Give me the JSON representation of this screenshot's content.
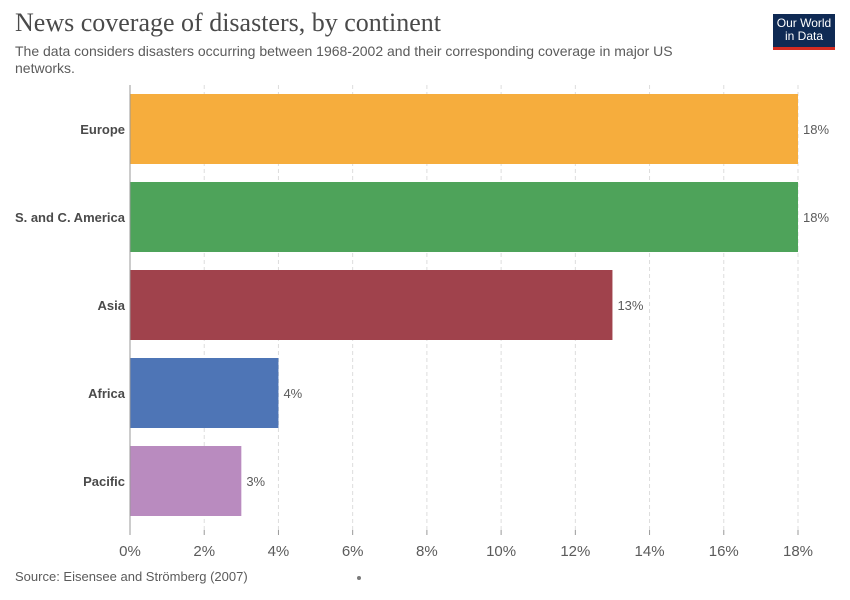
{
  "header": {
    "title": "News coverage of disasters, by continent",
    "subtitle": "The data considers disasters occurring between 1968-2002 and their corresponding coverage in major US networks."
  },
  "logo": {
    "line1": "Our World",
    "line2": "in Data",
    "bg_color": "#0f2a54",
    "accent_color": "#d42b21"
  },
  "footer": {
    "source": "Source: Eisensee and Strömberg (2007)"
  },
  "chart_data": {
    "type": "bar",
    "orientation": "horizontal",
    "title": "News coverage of disasters, by continent",
    "subtitle": "The data considers disasters occurring between 1968-2002 and their corresponding coverage in major US networks.",
    "categories": [
      "Europe",
      "S. and C. America",
      "Asia",
      "Africa",
      "Pacific"
    ],
    "values": [
      18,
      18,
      13,
      4,
      3
    ],
    "value_labels": [
      "18%",
      "18%",
      "13%",
      "4%",
      "3%"
    ],
    "colors": [
      "#f6ad3d",
      "#4ea35a",
      "#a0424c",
      "#4e75b6",
      "#b98bbf"
    ],
    "xlim": [
      0,
      18
    ],
    "xticks": [
      0,
      2,
      4,
      6,
      8,
      10,
      12,
      14,
      16,
      18
    ],
    "xtick_labels": [
      "0%",
      "2%",
      "4%",
      "6%",
      "8%",
      "10%",
      "12%",
      "14%",
      "16%",
      "18%"
    ],
    "grid": true,
    "legend": "none"
  }
}
